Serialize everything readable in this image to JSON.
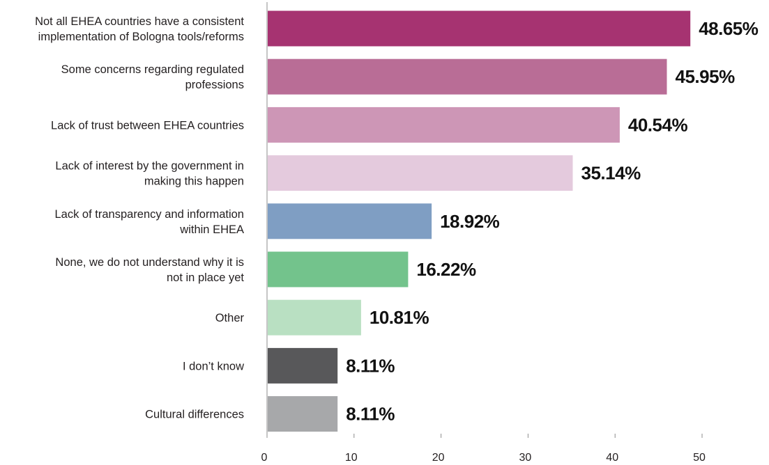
{
  "chart_data": {
    "type": "bar",
    "orientation": "horizontal",
    "categories": [
      [
        "Not all EHEA countries have a consistent",
        "implementation of Bologna tools/reforms"
      ],
      [
        "Some concerns regarding regulated",
        "professions"
      ],
      [
        "Lack of trust between EHEA countries"
      ],
      [
        "Lack of interest by the government in",
        "making this happen"
      ],
      [
        "Lack of transparency and information",
        "within EHEA"
      ],
      [
        "None, we do not understand why it is",
        "not in place yet"
      ],
      [
        "Other"
      ],
      [
        "I don’t know"
      ],
      [
        "Cultural differences"
      ]
    ],
    "values": [
      48.65,
      45.95,
      40.54,
      35.14,
      18.92,
      16.22,
      10.81,
      8.11,
      8.11
    ],
    "value_labels": [
      "48.65%",
      "45.95%",
      "40.54%",
      "35.14%",
      "18.92%",
      "16.22%",
      "10.81%",
      "8.11%",
      "8.11%"
    ],
    "colors": [
      "#a63371",
      "#b96d96",
      "#cd96b6",
      "#e4cadd",
      "#7f9ec3",
      "#73c38c",
      "#b9e0c2",
      "#58585a",
      "#a7a8aa"
    ],
    "xlim": [
      0,
      50
    ],
    "xticks": [
      0,
      10,
      20,
      30,
      40,
      50
    ],
    "xtick_labels": [
      "0",
      "10",
      "20",
      "30",
      "40",
      "50"
    ],
    "grid": false,
    "title": "",
    "xlabel": "",
    "ylabel": ""
  }
}
